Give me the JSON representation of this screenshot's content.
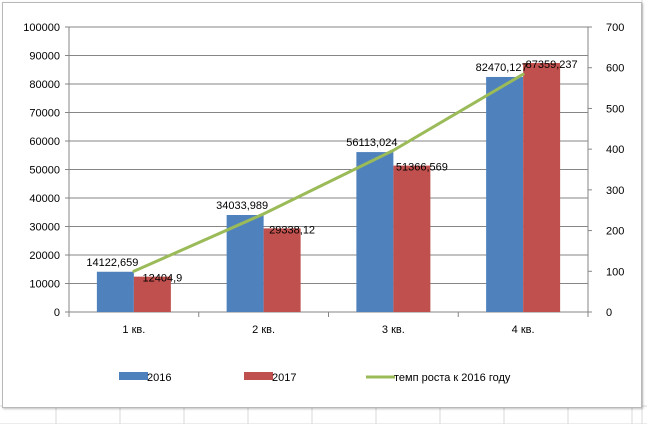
{
  "chart_data": {
    "type": "bar",
    "categories": [
      "1 кв.",
      "2 кв.",
      "3 кв.",
      "4 кв."
    ],
    "series": [
      {
        "name": "2016",
        "type": "bar",
        "axis": "left",
        "color": "#4f81bd",
        "values": [
          14122.659,
          34033.989,
          56113.024,
          82470.127
        ],
        "labels": [
          "14122,659",
          "34033,989",
          "56113,024",
          "82470,127"
        ]
      },
      {
        "name": "2017",
        "type": "bar",
        "axis": "left",
        "color": "#c0504d",
        "values": [
          12404.9,
          29338.12,
          51366.569,
          87359.237
        ],
        "labels": [
          "12404,9",
          "29338,12",
          "51366,569",
          "87359,237"
        ]
      },
      {
        "name": "темп роста к  2016 году",
        "type": "line",
        "axis": "right",
        "color": "#9bbb59",
        "values": [
          100,
          241,
          397,
          584
        ]
      }
    ],
    "y_left": {
      "min": 0,
      "max": 100000,
      "step": 10000,
      "ticks": [
        "0",
        "10000",
        "20000",
        "30000",
        "40000",
        "50000",
        "60000",
        "70000",
        "80000",
        "90000",
        "100000"
      ]
    },
    "y_right": {
      "min": 0,
      "max": 700,
      "step": 100,
      "ticks": [
        "0",
        "100",
        "200",
        "300",
        "400",
        "500",
        "600",
        "700"
      ]
    },
    "title": "",
    "xlabel": "",
    "ylabel": "",
    "grid": true,
    "legend_position": "bottom"
  }
}
